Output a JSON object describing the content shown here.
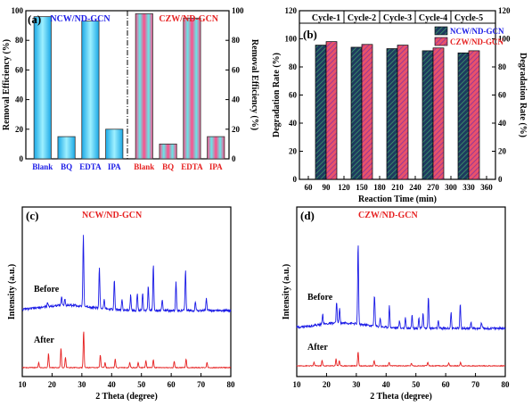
{
  "chart_data": [
    {
      "type": "bar",
      "panel_label": "(a)",
      "ylabel_left": "Removal Efficiency (%)",
      "ylabel_right": "Removal Efficiency (%)",
      "ylim": [
        0,
        100
      ],
      "yticks": [
        0,
        20,
        40,
        60,
        80,
        100
      ],
      "groups": [
        {
          "name": "NCW/ND-GCN",
          "name_color": "#1a1ae6",
          "categories": [
            "Blank",
            "BQ",
            "EDTA",
            "IPA"
          ],
          "values": [
            96,
            15,
            93,
            20
          ],
          "bar_color": "#33ccff",
          "tick_color": "#1a1ae6"
        },
        {
          "name": "CZW/ND-GCN",
          "name_color": "#e62020",
          "categories": [
            "Blank",
            "BQ",
            "EDTA",
            "IPA"
          ],
          "values": [
            98,
            10,
            95,
            15
          ],
          "bar_color": "#ff6ea0",
          "tick_color": "#e62020"
        }
      ]
    },
    {
      "type": "bar",
      "panel_label": "(b)",
      "xlabel": "Reaction Time (min)",
      "ylabel_left": "Degradation Rate (%)",
      "ylabel_right": "Degradation Rate (%)",
      "ylim": [
        0,
        120
      ],
      "yticks": [
        0,
        20,
        40,
        60,
        80,
        100,
        120
      ],
      "xlim": [
        45,
        375
      ],
      "xticks": [
        60,
        90,
        120,
        150,
        180,
        210,
        240,
        270,
        300,
        330,
        360
      ],
      "cycles": [
        "Cycle-1",
        "Cycle-2",
        "Cycle-3",
        "Cycle-4",
        "Cycle-5"
      ],
      "x": [
        90,
        150,
        210,
        270,
        330
      ],
      "series": [
        {
          "name": "NCW/ND-GCN",
          "values": [
            95.5,
            94,
            93,
            91.5,
            90
          ],
          "color": "#1e3a5f"
        },
        {
          "name": "CZW/ND-GCN",
          "values": [
            98,
            96,
            95.5,
            93.5,
            91.5
          ],
          "color": "#e8526a"
        }
      ],
      "legend": "top-right"
    },
    {
      "type": "line",
      "panel_label": "(c)",
      "title": "NCW/ND-GCN",
      "xlabel": "2 Theta (degree)",
      "ylabel": "Intensity (a.u.)",
      "xlim": [
        10,
        80
      ],
      "xticks": [
        10,
        20,
        30,
        40,
        50,
        60,
        70,
        80
      ],
      "series": [
        {
          "name": "Before",
          "color": "#1a1ae6",
          "peaks": [
            [
              18.5,
              4
            ],
            [
              23.2,
              10
            ],
            [
              24.3,
              7
            ],
            [
              30.5,
              80
            ],
            [
              35.9,
              46
            ],
            [
              37.5,
              10
            ],
            [
              40.9,
              34
            ],
            [
              43.5,
              12
            ],
            [
              46.4,
              18
            ],
            [
              48.6,
              20
            ],
            [
              50.4,
              20
            ],
            [
              52.3,
              28
            ],
            [
              54.0,
              52
            ],
            [
              57.0,
              12
            ],
            [
              61.6,
              32
            ],
            [
              64.8,
              45
            ],
            [
              68.1,
              10
            ],
            [
              71.8,
              14
            ]
          ]
        },
        {
          "name": "After",
          "color": "#e62020",
          "peaks": [
            [
              15.5,
              6
            ],
            [
              18.8,
              16
            ],
            [
              23.0,
              22
            ],
            [
              24.5,
              12
            ],
            [
              30.6,
              42
            ],
            [
              36.2,
              14
            ],
            [
              37.8,
              6
            ],
            [
              41.2,
              10
            ],
            [
              46.1,
              6
            ],
            [
              48.9,
              6
            ],
            [
              51.5,
              8
            ],
            [
              54.0,
              9
            ],
            [
              61.0,
              7
            ],
            [
              65.0,
              10
            ],
            [
              72.0,
              6
            ]
          ]
        }
      ]
    },
    {
      "type": "line",
      "panel_label": "(d)",
      "title": "CZW/ND-GCN",
      "xlabel": "2 Theta (degree)",
      "ylabel": "Intensity (a.u.)",
      "xlim": [
        10,
        80
      ],
      "xticks": [
        10,
        20,
        30,
        40,
        50,
        60,
        70,
        80
      ],
      "series": [
        {
          "name": "Before",
          "color": "#1a1ae6",
          "peaks": [
            [
              18.7,
              12
            ],
            [
              23.4,
              24
            ],
            [
              24.4,
              16
            ],
            [
              30.6,
              90
            ],
            [
              36.1,
              36
            ],
            [
              38.0,
              10
            ],
            [
              41.1,
              24
            ],
            [
              44.5,
              8
            ],
            [
              46.5,
              12
            ],
            [
              48.7,
              16
            ],
            [
              51.0,
              12
            ],
            [
              52.4,
              18
            ],
            [
              54.2,
              36
            ],
            [
              57.5,
              8
            ],
            [
              61.8,
              18
            ],
            [
              64.9,
              28
            ],
            [
              68.5,
              6
            ],
            [
              72.0,
              6
            ]
          ]
        },
        {
          "name": "After",
          "color": "#e62020",
          "peaks": [
            [
              15.8,
              4
            ],
            [
              18.5,
              6
            ],
            [
              23.2,
              8
            ],
            [
              24.3,
              6
            ],
            [
              30.6,
              16
            ],
            [
              36.0,
              6
            ],
            [
              41.0,
              4
            ],
            [
              48.5,
              3
            ],
            [
              54.0,
              4
            ],
            [
              61.0,
              3
            ],
            [
              65.0,
              4
            ]
          ]
        }
      ]
    }
  ]
}
